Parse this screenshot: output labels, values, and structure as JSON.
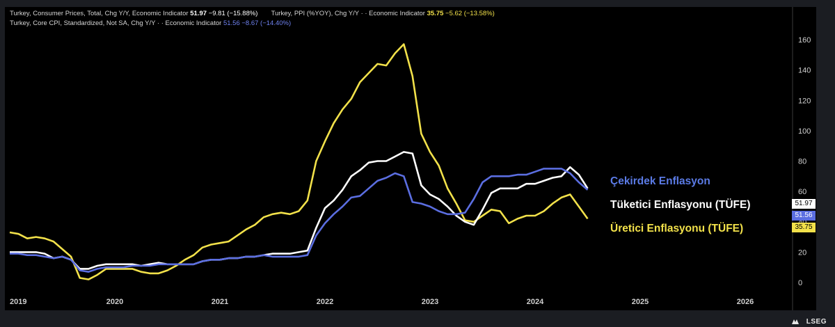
{
  "legend": {
    "cpi": {
      "name": "Turkey, Consumer Prices, Total, Chg Y/Y, Economic Indicator",
      "last": "51.97",
      "change": "−9.81 (−15.88%)"
    },
    "ppi": {
      "name": "Turkey, PPI (%YOY), Chg Y/Y ·  · Economic Indicator",
      "last": "35.75",
      "change": "−5.62 (−13.58%)"
    },
    "core": {
      "name": "Turkey, Core CPI, Standardized, Not SA, Chg Y/Y ·  · Economic Indicator",
      "last": "51.56",
      "change": "−8.67 (−14.40%)"
    }
  },
  "annotations": {
    "core": "Çekirdek Enflasyon",
    "cpi": "Tüketici Enflasyonu (TÜFE)",
    "ppi": "Üretici Enflasyonu (TÜFE)"
  },
  "brand": "LSEG",
  "colors": {
    "cpi": "#ffffff",
    "core": "#5b6ee1",
    "ppi": "#f2e14a",
    "background": "#000000",
    "frame": "#1b1d22"
  },
  "chart_data": {
    "type": "line",
    "title": "",
    "xlabel": "",
    "ylabel": "",
    "x_ticks": [
      "2019",
      "2020",
      "2021",
      "2022",
      "2023",
      "2024",
      "2025",
      "2026"
    ],
    "y_ticks": [
      0,
      20,
      40,
      60,
      80,
      100,
      120,
      140,
      160
    ],
    "ylim": [
      -5,
      175
    ],
    "xlim": [
      "2019-01",
      "2026-09"
    ],
    "grid": false,
    "series": [
      {
        "key": "ppi",
        "name": "Turkey, PPI (%YOY), Chg Y/Y",
        "color": "#f2e14a",
        "x": [
          "2019-01",
          "2019-02",
          "2019-03",
          "2019-04",
          "2019-05",
          "2019-06",
          "2019-07",
          "2019-08",
          "2019-09",
          "2019-10",
          "2019-11",
          "2019-12",
          "2020-01",
          "2020-02",
          "2020-03",
          "2020-04",
          "2020-05",
          "2020-06",
          "2020-07",
          "2020-08",
          "2020-09",
          "2020-10",
          "2020-11",
          "2020-12",
          "2021-01",
          "2021-02",
          "2021-03",
          "2021-04",
          "2021-05",
          "2021-06",
          "2021-07",
          "2021-08",
          "2021-09",
          "2021-10",
          "2021-11",
          "2021-12",
          "2022-01",
          "2022-02",
          "2022-03",
          "2022-04",
          "2022-05",
          "2022-06",
          "2022-07",
          "2022-08",
          "2022-09",
          "2022-10",
          "2022-11",
          "2022-12",
          "2023-01",
          "2023-02",
          "2023-03",
          "2023-04",
          "2023-05",
          "2023-06",
          "2023-07",
          "2023-08",
          "2023-09",
          "2023-10",
          "2023-11",
          "2023-12",
          "2024-01",
          "2024-02",
          "2024-03",
          "2024-04",
          "2024-05",
          "2024-06",
          "2024-07"
        ],
        "values": [
          33,
          32,
          29,
          30,
          29,
          27,
          22,
          17,
          3,
          2,
          5,
          9,
          9,
          9,
          9,
          7,
          6,
          6,
          8,
          11,
          15,
          18,
          23,
          25,
          26,
          27,
          31,
          35,
          38,
          43,
          45,
          46,
          45,
          47,
          54,
          80,
          93,
          105,
          114,
          121,
          132,
          138,
          144,
          143,
          151,
          157,
          136,
          98,
          86,
          77,
          62,
          52,
          41,
          40,
          44,
          48,
          47,
          39,
          42,
          44,
          44,
          47,
          52,
          56,
          58,
          50,
          42
        ]
      },
      {
        "key": "cpi",
        "name": "Turkey, Consumer Prices, Total, Chg Y/Y",
        "color": "#ffffff",
        "x": [
          "2019-01",
          "2019-02",
          "2019-03",
          "2019-04",
          "2019-05",
          "2019-06",
          "2019-07",
          "2019-08",
          "2019-09",
          "2019-10",
          "2019-11",
          "2019-12",
          "2020-01",
          "2020-02",
          "2020-03",
          "2020-04",
          "2020-05",
          "2020-06",
          "2020-07",
          "2020-08",
          "2020-09",
          "2020-10",
          "2020-11",
          "2020-12",
          "2021-01",
          "2021-02",
          "2021-03",
          "2021-04",
          "2021-05",
          "2021-06",
          "2021-07",
          "2021-08",
          "2021-09",
          "2021-10",
          "2021-11",
          "2021-12",
          "2022-01",
          "2022-02",
          "2022-03",
          "2022-04",
          "2022-05",
          "2022-06",
          "2022-07",
          "2022-08",
          "2022-09",
          "2022-10",
          "2022-11",
          "2022-12",
          "2023-01",
          "2023-02",
          "2023-03",
          "2023-04",
          "2023-05",
          "2023-06",
          "2023-07",
          "2023-08",
          "2023-09",
          "2023-10",
          "2023-11",
          "2023-12",
          "2024-01",
          "2024-02",
          "2024-03",
          "2024-04",
          "2024-05",
          "2024-06",
          "2024-07"
        ],
        "values": [
          20,
          20,
          20,
          20,
          19,
          16,
          17,
          15,
          9,
          9,
          11,
          12,
          12,
          12,
          12,
          11,
          12,
          13,
          12,
          12,
          12,
          12,
          14,
          15,
          15,
          16,
          16,
          17,
          17,
          18,
          19,
          19,
          19,
          20,
          21,
          36,
          49,
          54,
          61,
          70,
          74,
          79,
          80,
          80,
          83,
          86,
          85,
          64,
          58,
          55,
          50,
          44,
          40,
          38,
          48,
          59,
          62,
          62,
          62,
          65,
          65,
          67,
          69,
          70,
          76,
          71,
          62
        ]
      },
      {
        "key": "core",
        "name": "Turkey, Core CPI, Standardized, Not SA, Chg Y/Y",
        "color": "#5b6ee1",
        "x": [
          "2019-01",
          "2019-02",
          "2019-03",
          "2019-04",
          "2019-05",
          "2019-06",
          "2019-07",
          "2019-08",
          "2019-09",
          "2019-10",
          "2019-11",
          "2019-12",
          "2020-01",
          "2020-02",
          "2020-03",
          "2020-04",
          "2020-05",
          "2020-06",
          "2020-07",
          "2020-08",
          "2020-09",
          "2020-10",
          "2020-11",
          "2020-12",
          "2021-01",
          "2021-02",
          "2021-03",
          "2021-04",
          "2021-05",
          "2021-06",
          "2021-07",
          "2021-08",
          "2021-09",
          "2021-10",
          "2021-11",
          "2021-12",
          "2022-01",
          "2022-02",
          "2022-03",
          "2022-04",
          "2022-05",
          "2022-06",
          "2022-07",
          "2022-08",
          "2022-09",
          "2022-10",
          "2022-11",
          "2022-12",
          "2023-01",
          "2023-02",
          "2023-03",
          "2023-04",
          "2023-05",
          "2023-06",
          "2023-07",
          "2023-08",
          "2023-09",
          "2023-10",
          "2023-11",
          "2023-12",
          "2024-01",
          "2024-02",
          "2024-03",
          "2024-04",
          "2024-05",
          "2024-06",
          "2024-07"
        ],
        "values": [
          19,
          19,
          18,
          18,
          17,
          16,
          17,
          15,
          8,
          7,
          9,
          10,
          10,
          10,
          11,
          11,
          11,
          12,
          12,
          12,
          12,
          12,
          14,
          15,
          15,
          16,
          16,
          17,
          17,
          18,
          17,
          17,
          17,
          17,
          18,
          31,
          39,
          45,
          50,
          56,
          57,
          62,
          67,
          69,
          72,
          70,
          53,
          52,
          50,
          47,
          45,
          45,
          46,
          55,
          66,
          70,
          70,
          70,
          71,
          71,
          73,
          75,
          75,
          75,
          72,
          66,
          61
        ]
      }
    ]
  }
}
